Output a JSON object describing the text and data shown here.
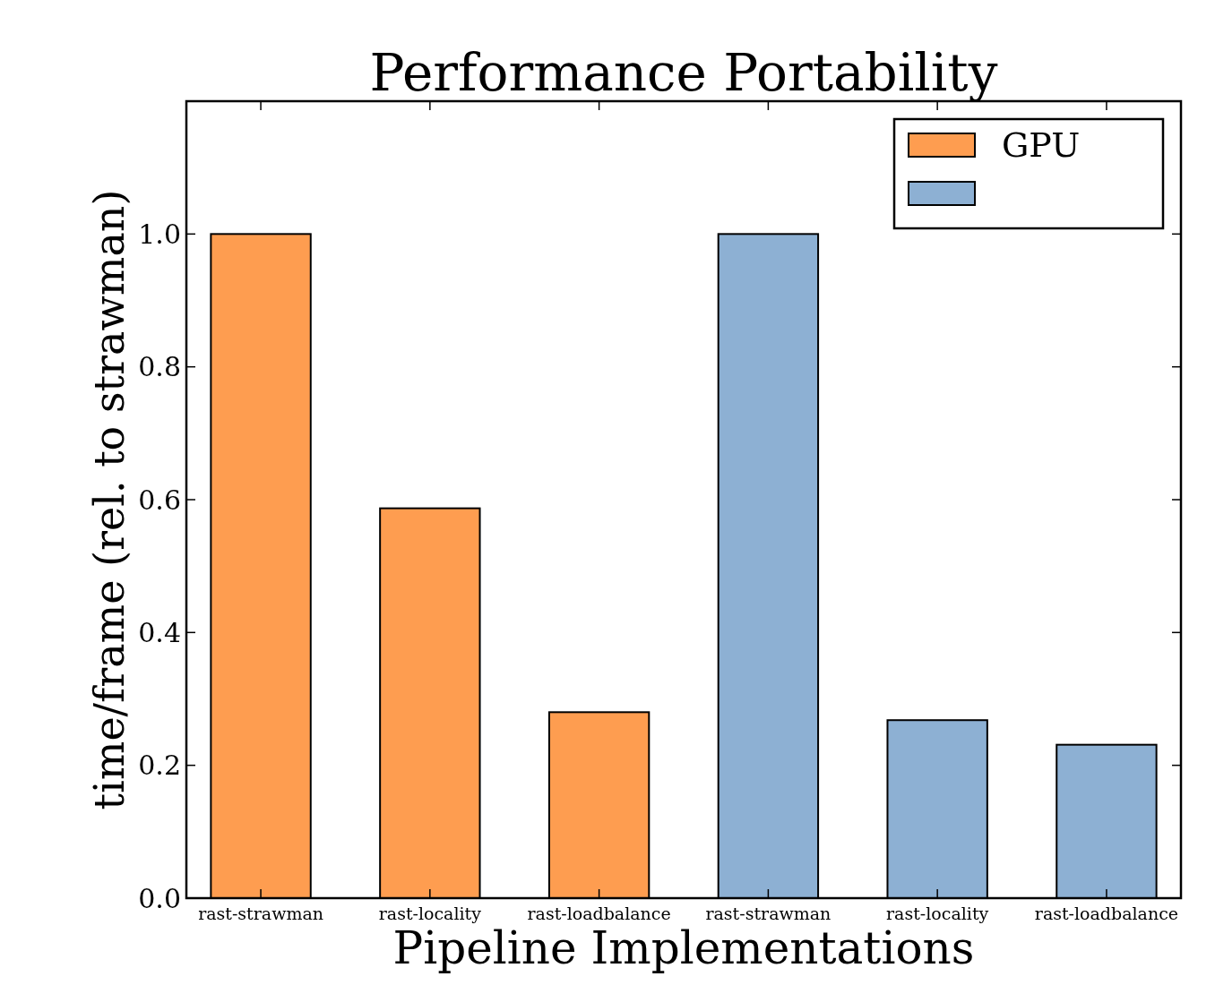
{
  "chart_data": {
    "type": "bar",
    "title": "Performance Portability",
    "xlabel": "Pipeline Implementations",
    "ylabel": "time/frame (rel. to strawman)",
    "categories": [
      "rast-strawman",
      "rast-locality",
      "rast-loadbalance",
      "rast-strawman",
      "rast-locality",
      "rast-loadbalance"
    ],
    "series": [
      {
        "name": "GPU",
        "color": "#fe9d50",
        "values": [
          1.0,
          0.587,
          0.28,
          null,
          null,
          null
        ]
      },
      {
        "color": "#8db0d3",
        "values": [
          null,
          null,
          null,
          1.0,
          0.268,
          0.231
        ]
      }
    ],
    "ylim": [
      0,
      1.2
    ],
    "yticks": [
      {
        "value": 0,
        "label": "0.0"
      },
      {
        "value": 0.2,
        "label": "0.2"
      },
      {
        "value": 0.4,
        "label": "0.4"
      },
      {
        "value": 0.6,
        "label": "0.6"
      },
      {
        "value": 0.8,
        "label": "0.8"
      },
      {
        "value": 1.0,
        "label": "1.0"
      }
    ],
    "legend": "top right",
    "grid": false
  }
}
